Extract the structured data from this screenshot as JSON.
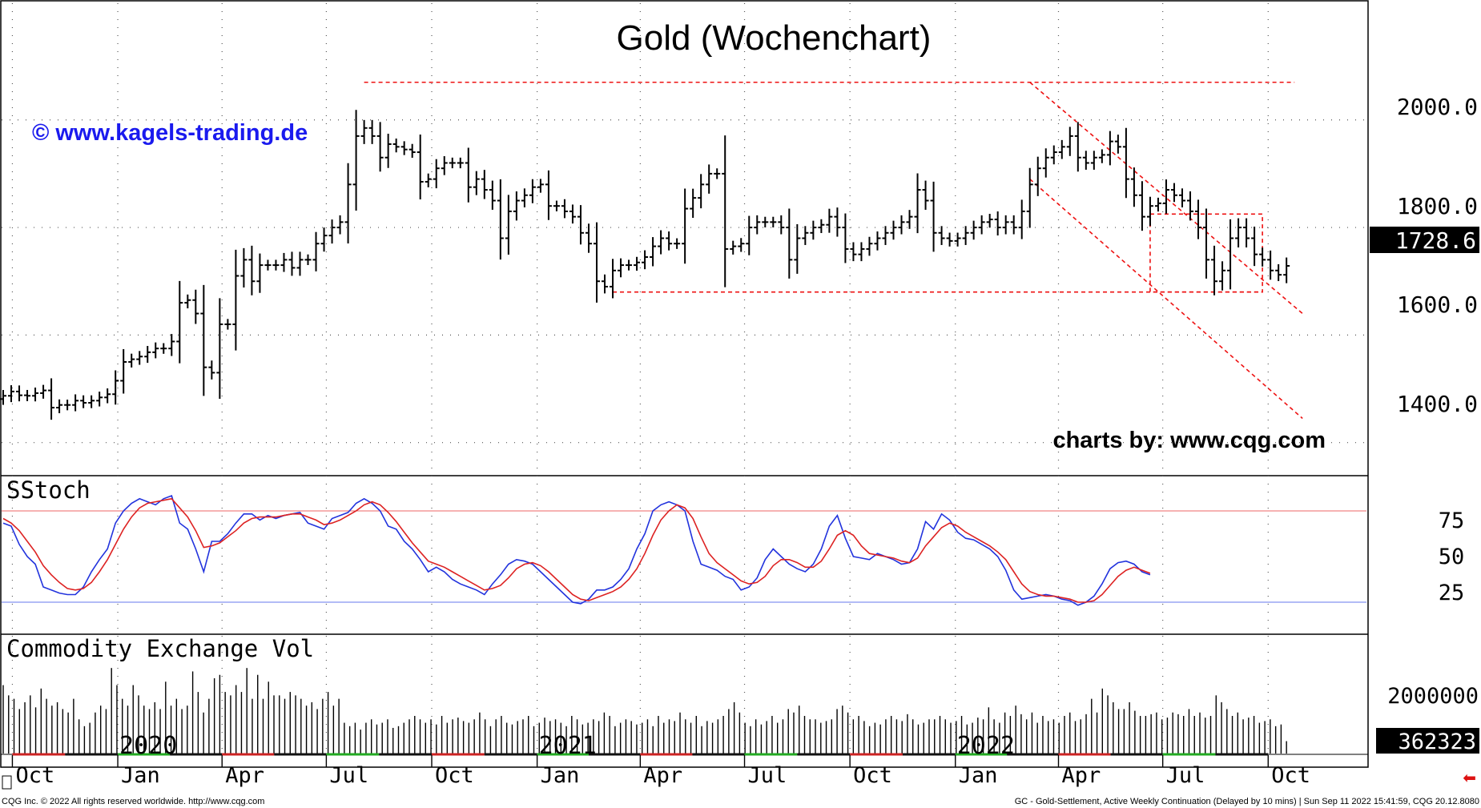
{
  "chart_data": [
    {
      "type": "ohlc",
      "title": "Gold (Wochenchart)",
      "watermark": "© www.kagels-trading.de",
      "source_label": "charts by: www.cqg.com",
      "y_ticks": [
        "2000.0",
        "1800.0",
        "1600.0",
        "1400.0"
      ],
      "y_tick_values": [
        2000,
        1800,
        1600,
        1400
      ],
      "ylim": [
        1340,
        2220
      ],
      "last_price": "1728.6",
      "last_price_value": 1728.6,
      "close_series": [
        1487,
        1495,
        1488,
        1487,
        1492,
        1497,
        1465,
        1470,
        1470,
        1478,
        1474,
        1478,
        1484,
        1490,
        1515,
        1550,
        1555,
        1560,
        1568,
        1575,
        1575,
        1588,
        1660,
        1665,
        1640,
        1540,
        1530,
        1620,
        1620,
        1710,
        1740,
        1700,
        1730,
        1730,
        1730,
        1740,
        1725,
        1740,
        1740,
        1770,
        1785,
        1800,
        1810,
        1880,
        1970,
        1985,
        1970,
        1930,
        1955,
        1950,
        1945,
        1940,
        1885,
        1890,
        1910,
        1920,
        1920,
        1920,
        1875,
        1890,
        1870,
        1850,
        1780,
        1830,
        1850,
        1860,
        1875,
        1880,
        1840,
        1840,
        1830,
        1820,
        1790,
        1770,
        1700,
        1690,
        1720,
        1730,
        1730,
        1735,
        1745,
        1765,
        1780,
        1770,
        1770,
        1835,
        1855,
        1880,
        1900,
        1900,
        1760,
        1765,
        1770,
        1800,
        1810,
        1810,
        1810,
        1800,
        1740,
        1780,
        1790,
        1800,
        1805,
        1820,
        1800,
        1760,
        1750,
        1760,
        1770,
        1780,
        1790,
        1800,
        1810,
        1820,
        1870,
        1850,
        1790,
        1780,
        1775,
        1780,
        1790,
        1800,
        1810,
        1815,
        1800,
        1810,
        1800,
        1830,
        1880,
        1910,
        1930,
        1940,
        1950,
        1970,
        1930,
        1920,
        1930,
        1935,
        1960,
        1950,
        1890,
        1860,
        1820,
        1840,
        1845,
        1870,
        1860,
        1850,
        1830,
        1800,
        1740,
        1700,
        1720,
        1780,
        1800,
        1780,
        1750,
        1740,
        1720,
        1712,
        1728.6
      ],
      "resistance_level": 2070,
      "support_level": 1680,
      "channel_upper": {
        "from": [
          "2022-03-07",
          2070
        ],
        "to": [
          "2022-10-31",
          1640
        ]
      },
      "channel_lower": {
        "from": [
          "2022-03-07",
          1890
        ],
        "to": [
          "2022-10-31",
          1445
        ]
      },
      "highlight_box": {
        "price_range": [
          1680,
          1825
        ],
        "period": [
          "2022-06-20",
          "2022-09-26"
        ]
      }
    },
    {
      "type": "line",
      "label": "SStoch",
      "y_ticks": [
        "75",
        "50",
        "25"
      ],
      "y_tick_values": [
        75,
        50,
        25
      ],
      "ylim": [
        0,
        100
      ],
      "upper_level": 80,
      "lower_level": 20,
      "series": [
        {
          "color": "#2233dd",
          "values": [
            72,
            70,
            58,
            50,
            45,
            30,
            28,
            26,
            25,
            25,
            30,
            40,
            48,
            55,
            72,
            80,
            85,
            88,
            86,
            84,
            88,
            90,
            72,
            68,
            55,
            40,
            60,
            60,
            65,
            72,
            78,
            78,
            74,
            77,
            75,
            77,
            78,
            79,
            72,
            70,
            68,
            75,
            77,
            79,
            85,
            88,
            85,
            80,
            70,
            68,
            60,
            55,
            48,
            40,
            43,
            40,
            35,
            32,
            30,
            28,
            25,
            32,
            38,
            45,
            48,
            47,
            45,
            40,
            35,
            30,
            25,
            20,
            19,
            22,
            28,
            28,
            30,
            35,
            42,
            55,
            65,
            80,
            84,
            86,
            84,
            80,
            60,
            45,
            43,
            41,
            37,
            35,
            28,
            30,
            36,
            48,
            55,
            50,
            45,
            42,
            40,
            45,
            55,
            70,
            77,
            62,
            50,
            49,
            48,
            52,
            50,
            48,
            45,
            46,
            55,
            73,
            68,
            78,
            74,
            66,
            62,
            61,
            58,
            55,
            50,
            41,
            28,
            22,
            23,
            24,
            25,
            24,
            22,
            21,
            18,
            20,
            24,
            32,
            42,
            46,
            47,
            45,
            40,
            38
          ]
        },
        {
          "color": "#dd2222",
          "values": [
            75,
            72,
            67,
            60,
            53,
            44,
            38,
            33,
            29,
            28,
            29,
            33,
            40,
            48,
            58,
            68,
            76,
            82,
            85,
            86,
            87,
            88,
            82,
            76,
            67,
            56,
            57,
            59,
            63,
            67,
            72,
            75,
            76,
            76,
            76,
            77,
            78,
            78,
            76,
            74,
            71,
            72,
            74,
            77,
            80,
            84,
            86,
            84,
            79,
            73,
            66,
            59,
            53,
            47,
            45,
            43,
            40,
            37,
            34,
            31,
            28,
            29,
            31,
            36,
            42,
            45,
            46,
            44,
            40,
            35,
            30,
            25,
            22,
            21,
            23,
            25,
            27,
            30,
            35,
            42,
            52,
            64,
            74,
            80,
            84,
            82,
            75,
            63,
            52,
            46,
            42,
            38,
            34,
            32,
            33,
            37,
            44,
            48,
            48,
            46,
            43,
            43,
            47,
            55,
            64,
            67,
            64,
            57,
            52,
            51,
            50,
            49,
            47,
            46,
            49,
            57,
            63,
            69,
            72,
            70,
            66,
            63,
            60,
            57,
            53,
            48,
            40,
            32,
            27,
            25,
            24,
            24,
            23,
            22,
            20,
            20,
            21,
            25,
            31,
            37,
            41,
            43,
            41,
            39
          ]
        }
      ]
    },
    {
      "type": "bar",
      "label": "Commodity Exchange Vol",
      "y_ticks": [
        "2000000"
      ],
      "y_tick_values": [
        2000000
      ],
      "ylim": [
        0,
        3300000
      ],
      "last_volume": "362323",
      "last_volume_value": 362323,
      "values": [
        2000000,
        1700000,
        1600000,
        1300000,
        1500000,
        1700000,
        1350000,
        1900000,
        1600000,
        1400000,
        1500000,
        1300000,
        1200000,
        1600000,
        1000000,
        800000,
        900000,
        1200000,
        1400000,
        1300000,
        2500000,
        2000000,
        1600000,
        1400000,
        2000000,
        1700000,
        1400000,
        1300000,
        1500000,
        1300000,
        2100000,
        1400000,
        1600000,
        1300000,
        1400000,
        2400000,
        1800000,
        1200000,
        1600000,
        2200000,
        2300000,
        1800000,
        1700000,
        2000000,
        1800000,
        2500000,
        1600000,
        2300000,
        1600000,
        2100000,
        1700000,
        1700000,
        1600000,
        1800000,
        1700000,
        1600000,
        1400000,
        1500000,
        1300000,
        1600000,
        1800000,
        1400000,
        1600000,
        900000,
        800000,
        900000,
        700000,
        900000,
        1000000,
        850000,
        900000,
        1000000,
        750000,
        800000,
        900000,
        1000000,
        1100000,
        1000000,
        900000,
        1000000,
        850000,
        1100000,
        900000,
        1000000,
        1050000,
        950000,
        900000,
        1000000,
        1200000,
        1000000,
        800000,
        1000000,
        1100000,
        900000,
        850000,
        950000,
        1000000,
        1100000,
        800000,
        900000,
        1050000,
        950000,
        1000000,
        900000,
        800000,
        1100000,
        1000000,
        850000,
        900000,
        1000000,
        950000,
        1200000,
        1100000,
        800000,
        900000,
        1000000,
        950000,
        850000,
        900000,
        1000000,
        800000,
        1100000,
        900000,
        1000000,
        950000,
        1200000,
        1000000,
        900000,
        1100000,
        800000,
        950000,
        900000,
        1000000,
        1100000,
        1300000,
        1500000,
        1200000,
        900000,
        800000,
        1000000,
        850000,
        950000,
        1100000,
        900000,
        1000000,
        1300000,
        1200000,
        1400000,
        1100000,
        1000000,
        1000000,
        900000,
        950000,
        1000000,
        1300000,
        1400000,
        1200000,
        1000000,
        1100000,
        950000,
        800000,
        900000,
        850000,
        1000000,
        1100000,
        1000000,
        950000,
        1150000,
        1000000,
        850000,
        900000,
        1000000,
        1000000,
        1100000,
        1000000,
        900000,
        950000,
        1100000,
        850000,
        900000,
        1050000,
        1000000,
        1350000,
        1000000,
        900000,
        1200000,
        1100000,
        1400000,
        1150000,
        1000000,
        1200000,
        900000,
        1100000,
        950000,
        1000000,
        900000,
        1100000,
        1200000,
        950000,
        1000000,
        1150000,
        1600000,
        1200000,
        1900000,
        1700000,
        1500000,
        1300000,
        1300000,
        1500000,
        1250000,
        1100000,
        1100000,
        1150000,
        1200000,
        1000000,
        1050000,
        1200000,
        1150000,
        1100000,
        1300000,
        1100000,
        1200000,
        1050000,
        1100000,
        1700000,
        1500000,
        1300000,
        1100000,
        1200000,
        1000000,
        1050000,
        1100000,
        900000,
        950000,
        1000000,
        800000,
        850000,
        362323
      ]
    }
  ],
  "x_axis": {
    "month_labels": [
      "Oct",
      "Jan",
      "Apr",
      "Jul",
      "Oct",
      "Jan",
      "Apr",
      "Jul",
      "Oct",
      "Jan",
      "Apr",
      "Jul",
      "Oct"
    ],
    "year_labels": [
      "2020",
      "2021",
      "2022"
    ]
  },
  "footer": {
    "left": "CQG Inc. © 2022 All rights reserved worldwide. http://www.cqg.com",
    "right": "GC - Gold-Settlement, Active Weekly Continuation (Delayed by 10 mins) | Sun Sep 11 2022 15:41:59, CQG 20.12.8080"
  },
  "colors": {
    "price_bars": "#000000",
    "trend_lines": "#ee1111",
    "stoch_fast": "#2233dd",
    "stoch_slow": "#dd2222",
    "watermark": "#1a1aee"
  }
}
